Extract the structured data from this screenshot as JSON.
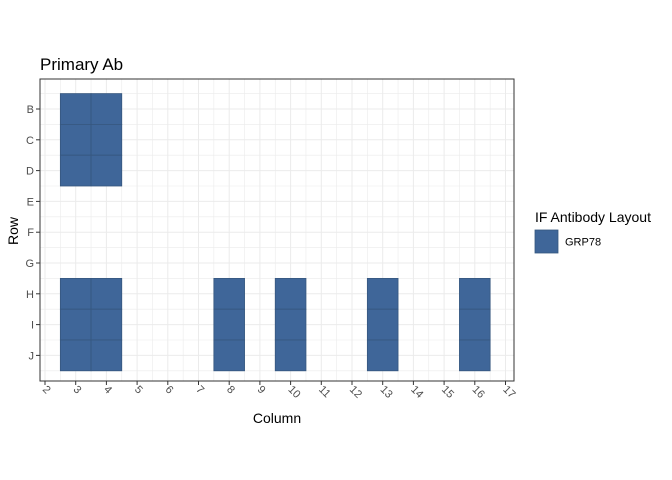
{
  "chart_data": {
    "type": "heatmap",
    "title": "Primary Ab",
    "xlabel": "Column",
    "ylabel": "Row",
    "x_ticks": [
      2,
      3,
      4,
      5,
      6,
      7,
      8,
      9,
      10,
      11,
      12,
      13,
      14,
      15,
      16,
      17
    ],
    "xlim": [
      2,
      17
    ],
    "y_categories": [
      "B",
      "C",
      "D",
      "E",
      "F",
      "G",
      "H",
      "I",
      "J"
    ],
    "legend": {
      "title": "IF Antibody Layout",
      "entries": [
        {
          "label": "GRP78",
          "color": "#3f6699"
        }
      ]
    },
    "series": [
      {
        "name": "GRP78",
        "color": "#3f6699",
        "cells": [
          {
            "col": 3,
            "row": "B"
          },
          {
            "col": 4,
            "row": "B"
          },
          {
            "col": 3,
            "row": "C"
          },
          {
            "col": 4,
            "row": "C"
          },
          {
            "col": 3,
            "row": "D"
          },
          {
            "col": 4,
            "row": "D"
          },
          {
            "col": 3,
            "row": "H"
          },
          {
            "col": 4,
            "row": "H"
          },
          {
            "col": 3,
            "row": "I"
          },
          {
            "col": 4,
            "row": "I"
          },
          {
            "col": 3,
            "row": "J"
          },
          {
            "col": 4,
            "row": "J"
          },
          {
            "col": 8,
            "row": "H"
          },
          {
            "col": 8,
            "row": "I"
          },
          {
            "col": 8,
            "row": "J"
          },
          {
            "col": 10,
            "row": "H"
          },
          {
            "col": 10,
            "row": "I"
          },
          {
            "col": 10,
            "row": "J"
          },
          {
            "col": 13,
            "row": "H"
          },
          {
            "col": 13,
            "row": "I"
          },
          {
            "col": 13,
            "row": "J"
          },
          {
            "col": 16,
            "row": "H"
          },
          {
            "col": 16,
            "row": "I"
          },
          {
            "col": 16,
            "row": "J"
          }
        ]
      }
    ],
    "grid": true,
    "legend_position": "right"
  }
}
